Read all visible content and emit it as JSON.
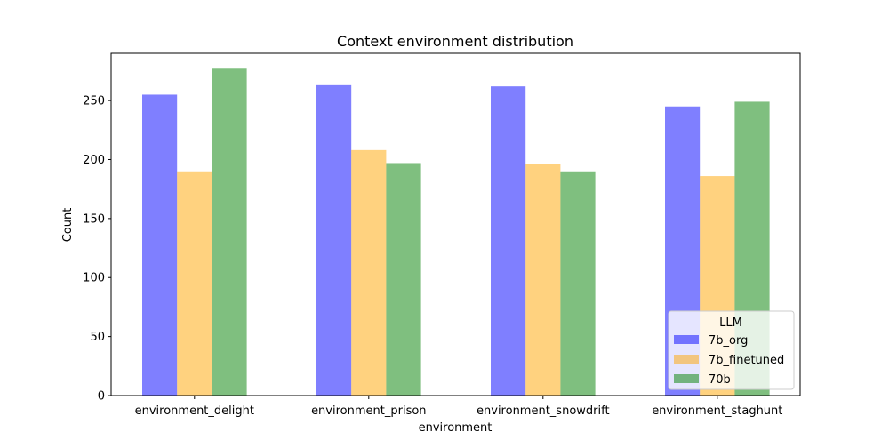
{
  "chart_data": {
    "type": "bar",
    "title": "Context environment distribution",
    "xlabel": "environment",
    "ylabel": "Count",
    "categories": [
      "environment_delight",
      "environment_prison",
      "environment_snowdrift",
      "environment_staghunt"
    ],
    "series": [
      {
        "name": "7b_org",
        "color": "#0000ff",
        "values": [
          255,
          263,
          262,
          245
        ]
      },
      {
        "name": "7b_finetuned",
        "color": "#ffa500",
        "values": [
          190,
          208,
          196,
          186
        ]
      },
      {
        "name": "70b",
        "color": "#008000",
        "values": [
          277,
          197,
          190,
          249
        ]
      }
    ],
    "bar_opacity": 0.5,
    "ylim": [
      0,
      290
    ],
    "yticks": [
      0,
      50,
      100,
      150,
      200,
      250
    ],
    "grid": false,
    "legend": {
      "title": "LLM",
      "placement": "lower-right"
    }
  }
}
